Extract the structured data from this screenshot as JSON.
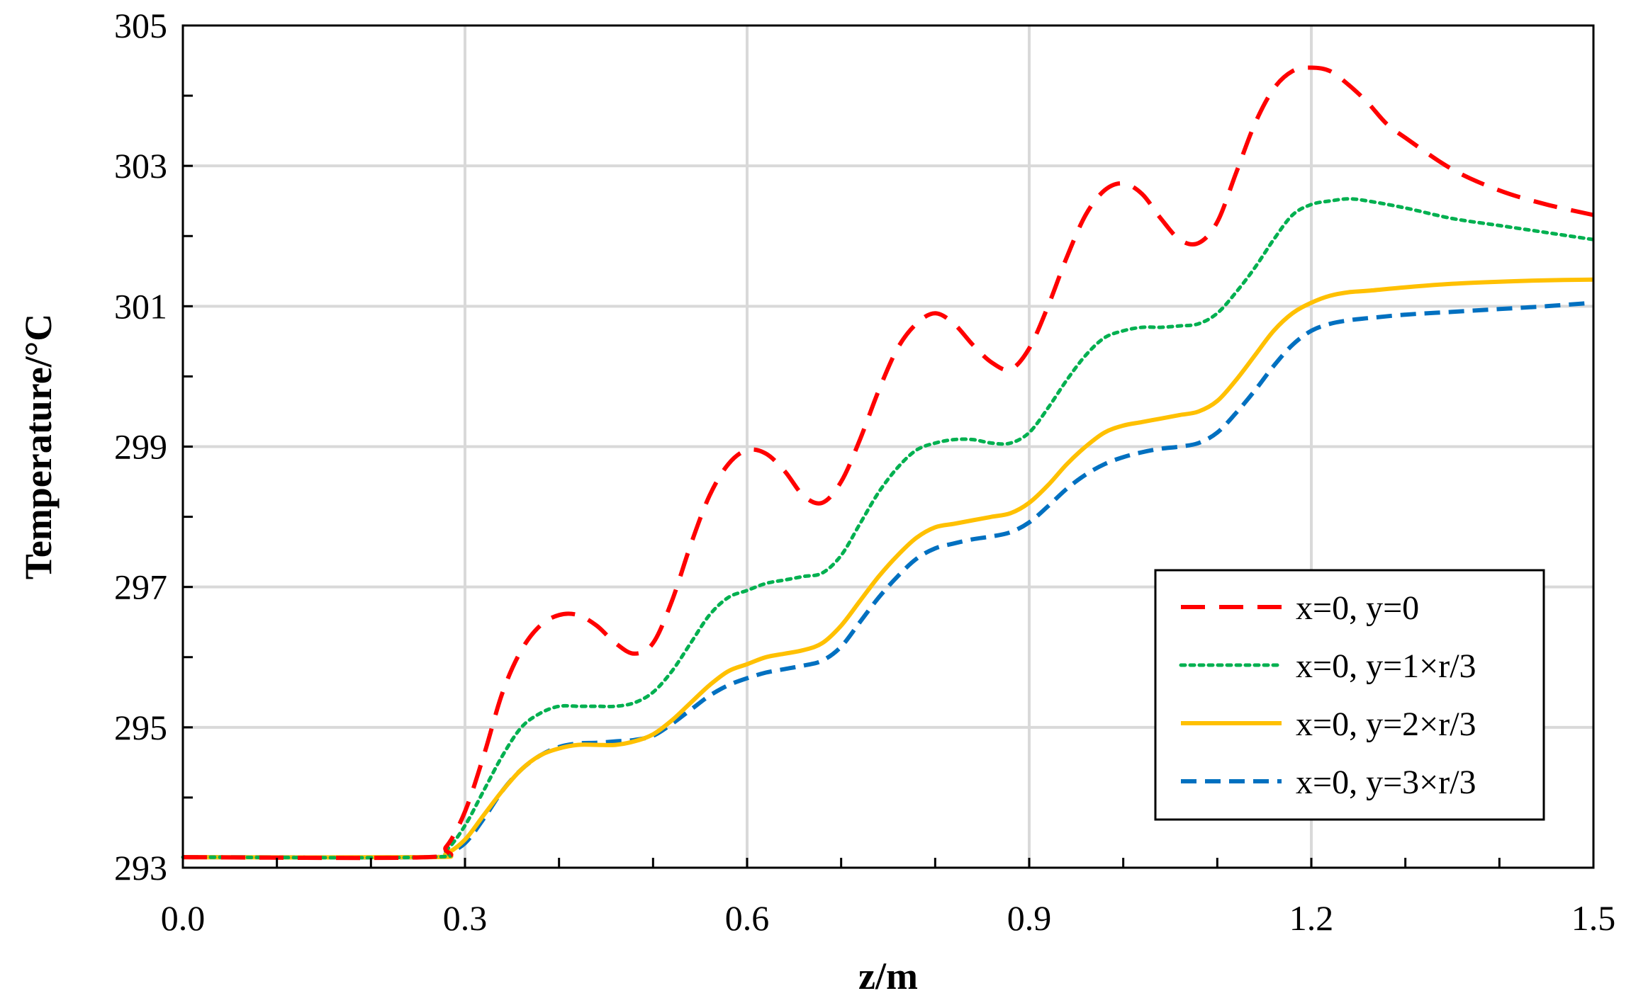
{
  "chart_data": {
    "type": "line",
    "xlabel": "z/m",
    "ylabel": "Temperature/°C",
    "xlim": [
      0,
      1.5
    ],
    "ylim": [
      293,
      305
    ],
    "xticks": [
      0.0,
      0.3,
      0.6,
      0.9,
      1.2,
      1.5
    ],
    "xtick_labels": [
      "0.0",
      "0.3",
      "0.6",
      "0.9",
      "1.2",
      "1.5"
    ],
    "yticks": [
      293,
      295,
      297,
      299,
      301,
      303,
      305
    ],
    "ytick_labels": [
      "293",
      "295",
      "297",
      "299",
      "301",
      "303",
      "305"
    ],
    "grid": true,
    "legend_position": "bottom-right",
    "series": [
      {
        "name": "x=0, y=0",
        "color": "#FF0000",
        "style": "dashed",
        "x": [
          0,
          0.26,
          0.28,
          0.3,
          0.32,
          0.34,
          0.36,
          0.38,
          0.4,
          0.42,
          0.44,
          0.46,
          0.48,
          0.5,
          0.52,
          0.54,
          0.56,
          0.58,
          0.6,
          0.62,
          0.64,
          0.66,
          0.68,
          0.7,
          0.72,
          0.74,
          0.76,
          0.78,
          0.8,
          0.82,
          0.84,
          0.86,
          0.88,
          0.9,
          0.92,
          0.94,
          0.96,
          0.98,
          1.0,
          1.02,
          1.04,
          1.06,
          1.08,
          1.1,
          1.12,
          1.14,
          1.16,
          1.18,
          1.2,
          1.22,
          1.24,
          1.26,
          1.28,
          1.3,
          1.35,
          1.4,
          1.45,
          1.5
        ],
        "y": [
          293.15,
          293.15,
          293.3,
          293.8,
          294.6,
          295.5,
          296.1,
          296.45,
          296.6,
          296.6,
          296.45,
          296.2,
          296.05,
          296.2,
          296.8,
          297.6,
          298.3,
          298.75,
          298.95,
          298.9,
          298.65,
          298.3,
          298.2,
          298.5,
          299.1,
          299.8,
          300.4,
          300.75,
          300.9,
          300.75,
          300.45,
          300.2,
          300.1,
          300.4,
          301.0,
          301.7,
          302.3,
          302.65,
          302.75,
          302.6,
          302.25,
          301.95,
          301.9,
          302.2,
          302.9,
          303.6,
          304.1,
          304.35,
          304.4,
          304.35,
          304.15,
          303.9,
          303.6,
          303.4,
          302.95,
          302.65,
          302.45,
          302.3
        ]
      },
      {
        "name": "x=0, y=1×r/3",
        "color": "#00B050",
        "style": "dotted",
        "x": [
          0,
          0.26,
          0.28,
          0.3,
          0.32,
          0.34,
          0.36,
          0.38,
          0.4,
          0.42,
          0.44,
          0.46,
          0.48,
          0.5,
          0.52,
          0.54,
          0.56,
          0.58,
          0.6,
          0.62,
          0.64,
          0.66,
          0.68,
          0.7,
          0.72,
          0.74,
          0.76,
          0.78,
          0.8,
          0.82,
          0.84,
          0.86,
          0.88,
          0.9,
          0.92,
          0.94,
          0.96,
          0.98,
          1.0,
          1.02,
          1.04,
          1.06,
          1.08,
          1.1,
          1.12,
          1.14,
          1.16,
          1.18,
          1.2,
          1.22,
          1.24,
          1.26,
          1.3,
          1.35,
          1.4,
          1.45,
          1.5
        ],
        "y": [
          293.15,
          293.15,
          293.25,
          293.6,
          294.1,
          294.6,
          295.0,
          295.2,
          295.3,
          295.3,
          295.3,
          295.3,
          295.35,
          295.5,
          295.8,
          296.2,
          296.6,
          296.85,
          296.95,
          297.05,
          297.1,
          297.15,
          297.2,
          297.45,
          297.9,
          298.35,
          298.7,
          298.95,
          299.05,
          299.1,
          299.1,
          299.05,
          299.05,
          299.2,
          299.55,
          299.95,
          300.3,
          300.55,
          300.65,
          300.7,
          300.7,
          300.72,
          300.75,
          300.9,
          301.2,
          301.55,
          301.95,
          302.3,
          302.45,
          302.5,
          302.53,
          302.5,
          302.4,
          302.25,
          302.15,
          302.05,
          301.95
        ]
      },
      {
        "name": "x=0, y=2×r/3",
        "color": "#FFC000",
        "style": "solid",
        "x": [
          0,
          0.26,
          0.28,
          0.3,
          0.32,
          0.34,
          0.36,
          0.38,
          0.4,
          0.42,
          0.44,
          0.46,
          0.48,
          0.5,
          0.52,
          0.54,
          0.56,
          0.58,
          0.6,
          0.62,
          0.64,
          0.66,
          0.68,
          0.7,
          0.72,
          0.74,
          0.76,
          0.78,
          0.8,
          0.82,
          0.84,
          0.86,
          0.88,
          0.9,
          0.92,
          0.94,
          0.96,
          0.98,
          1.0,
          1.02,
          1.04,
          1.06,
          1.08,
          1.1,
          1.12,
          1.14,
          1.16,
          1.18,
          1.2,
          1.22,
          1.24,
          1.26,
          1.3,
          1.35,
          1.4,
          1.45,
          1.5
        ],
        "y": [
          293.15,
          293.15,
          293.2,
          293.4,
          293.75,
          294.1,
          294.4,
          294.6,
          294.7,
          294.75,
          294.75,
          294.75,
          294.8,
          294.9,
          295.1,
          295.35,
          295.6,
          295.8,
          295.9,
          296.0,
          296.05,
          296.1,
          296.2,
          296.45,
          296.8,
          297.15,
          297.45,
          297.7,
          297.85,
          297.9,
          297.95,
          298.0,
          298.05,
          298.2,
          298.45,
          298.75,
          299.0,
          299.2,
          299.3,
          299.35,
          299.4,
          299.45,
          299.5,
          299.65,
          299.95,
          300.3,
          300.65,
          300.9,
          301.05,
          301.15,
          301.2,
          301.22,
          301.27,
          301.32,
          301.35,
          301.37,
          301.38
        ]
      },
      {
        "name": "x=0, y=3×r/3",
        "color": "#0070C0",
        "style": "dashed",
        "x": [
          0,
          0.26,
          0.28,
          0.3,
          0.32,
          0.34,
          0.36,
          0.38,
          0.4,
          0.42,
          0.44,
          0.46,
          0.48,
          0.5,
          0.52,
          0.54,
          0.56,
          0.58,
          0.6,
          0.62,
          0.64,
          0.66,
          0.68,
          0.7,
          0.72,
          0.74,
          0.76,
          0.78,
          0.8,
          0.82,
          0.84,
          0.86,
          0.88,
          0.9,
          0.92,
          0.94,
          0.96,
          0.98,
          1.0,
          1.02,
          1.04,
          1.06,
          1.08,
          1.1,
          1.12,
          1.14,
          1.16,
          1.18,
          1.2,
          1.22,
          1.24,
          1.26,
          1.3,
          1.35,
          1.4,
          1.45,
          1.5
        ],
        "y": [
          293.15,
          293.15,
          293.2,
          293.35,
          293.7,
          294.1,
          294.4,
          294.6,
          294.72,
          294.77,
          294.78,
          294.8,
          294.82,
          294.88,
          295.05,
          295.25,
          295.45,
          295.6,
          295.7,
          295.78,
          295.83,
          295.88,
          295.95,
          296.15,
          296.5,
          296.85,
          297.15,
          297.4,
          297.55,
          297.62,
          297.68,
          297.72,
          297.78,
          297.92,
          298.15,
          298.4,
          298.6,
          298.75,
          298.85,
          298.92,
          298.97,
          299.0,
          299.05,
          299.2,
          299.48,
          299.8,
          300.15,
          300.45,
          300.65,
          300.75,
          300.8,
          300.83,
          300.88,
          300.92,
          300.96,
          301.0,
          301.05
        ]
      }
    ]
  }
}
